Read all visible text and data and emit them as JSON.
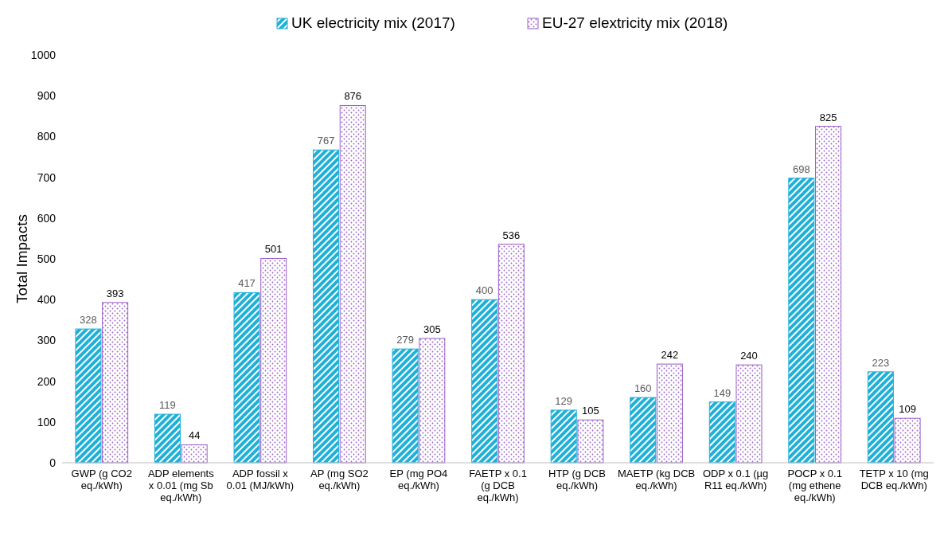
{
  "chart_data": {
    "type": "bar",
    "ylabel": "Total Impacts",
    "categories": [
      "GWP (g CO2 eq./kWh)",
      "ADP elements x 0.01 (mg Sb eq./kWh)",
      "ADP fossil x 0.01 (MJ/kWh)",
      "AP (mg SO2 eq./kWh)",
      "EP (mg PO4 eq./kWh)",
      "FAETP x 0.1 (g DCB eq./kWh)",
      "HTP (g DCB eq./kWh)",
      "MAETP (kg DCB eq./kWh)",
      "ODP  x 0.1 (µg R11 eq./kWh)",
      "POCP x 0.1 (mg ethene eq./kWh)",
      "TETP x 10 (mg DCB eq./kWh)"
    ],
    "series": [
      {
        "name": "UK electricity mix (2017)",
        "color": "#1fb0d8",
        "values": [
          328,
          119,
          417,
          767,
          279,
          400,
          129,
          160,
          149,
          698,
          223
        ]
      },
      {
        "name": "EU-27 elextricity mix (2018)",
        "color": "#9b5fc9",
        "values": [
          393,
          44,
          501,
          876,
          305,
          536,
          105,
          242,
          240,
          825,
          109
        ]
      }
    ],
    "ylim": [
      0,
      1000
    ],
    "yticks": [
      0,
      100,
      200,
      300,
      400,
      500,
      600,
      700,
      800,
      900,
      1000
    ],
    "data_labels": true,
    "legend": "top",
    "grid": false
  }
}
